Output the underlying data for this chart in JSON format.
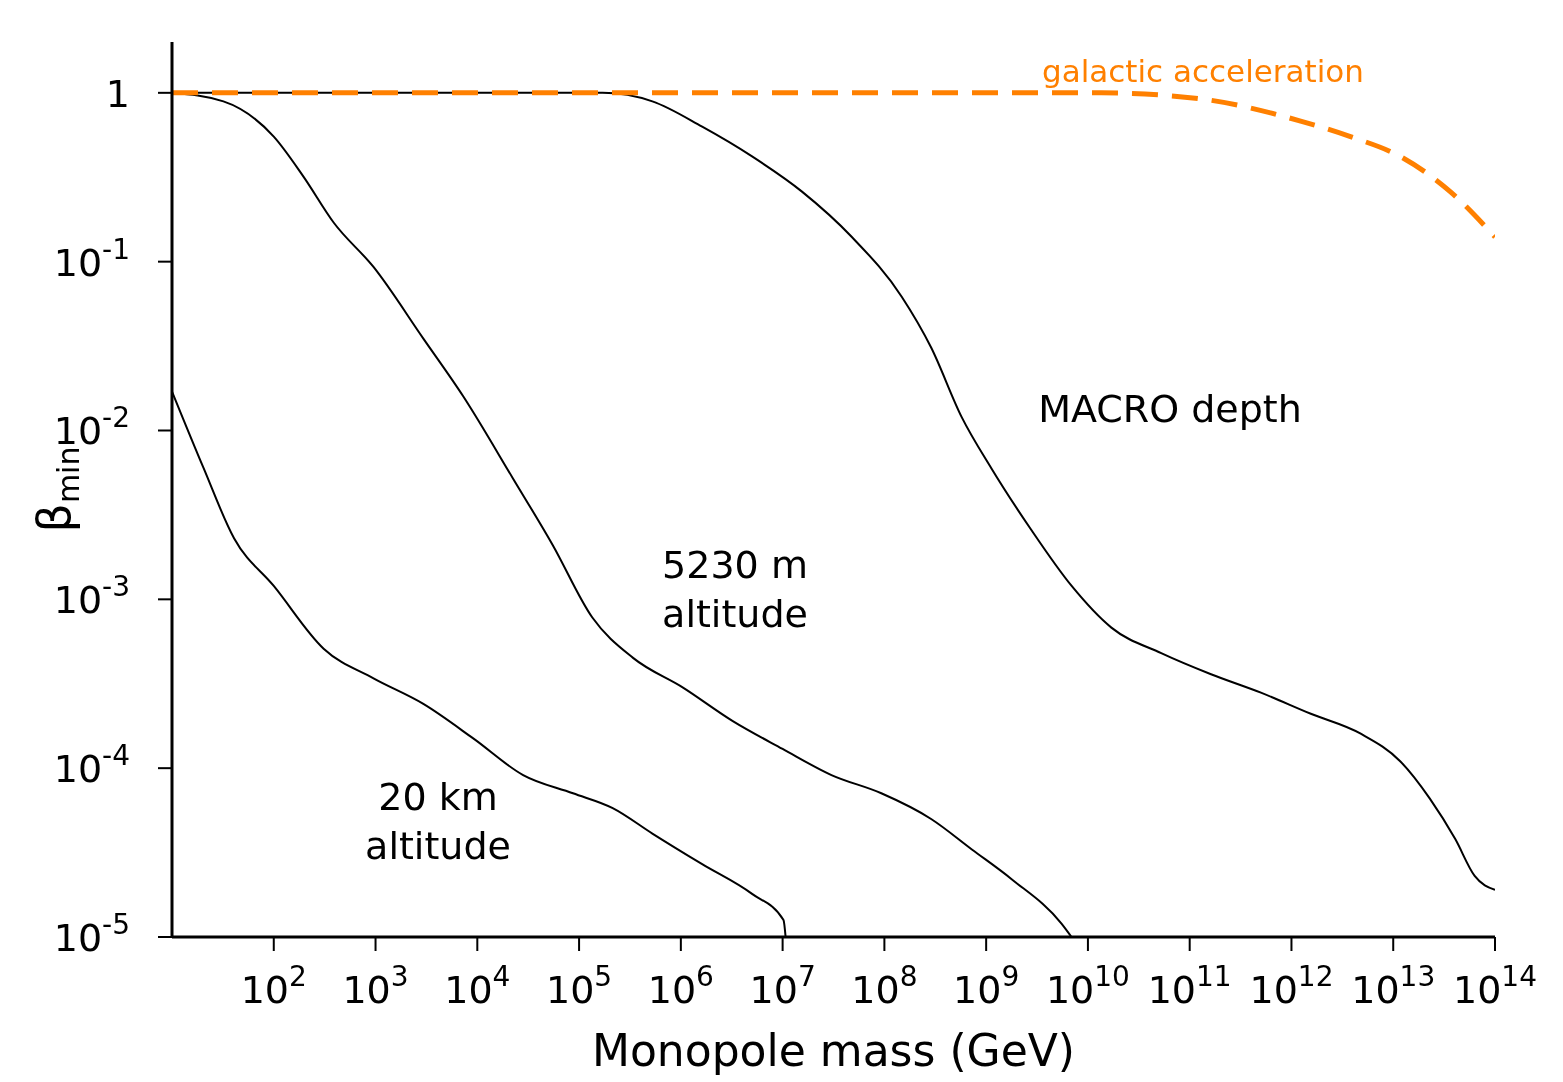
{
  "chart_data": {
    "type": "line",
    "xlabel": "Monopole mass (GeV)",
    "ylabel": "β$_{min}$",
    "log": "xy",
    "marker": "none",
    "line_style": "solid",
    "xlim": [
      10,
      100000000000000.0
    ],
    "ylim": [
      1e-05,
      2
    ],
    "xticks": [
      {
        "value": 100.0,
        "label": "10$^{2}$"
      },
      {
        "value": 1000.0,
        "label": "10$^{3}$"
      },
      {
        "value": 10000.0,
        "label": "10$^{4}$"
      },
      {
        "value": 100000.0,
        "label": "10$^{5}$"
      },
      {
        "value": 1000000.0,
        "label": "10$^{6}$"
      },
      {
        "value": 10000000.0,
        "label": "10$^{7}$"
      },
      {
        "value": 100000000.0,
        "label": "10$^{8}$"
      },
      {
        "value": 1000000000.0,
        "label": "10$^{9}$"
      },
      {
        "value": 10000000000.0,
        "label": "10$^{10}$"
      },
      {
        "value": 100000000000.0,
        "label": "10$^{11}$"
      },
      {
        "value": 1000000000000.0,
        "label": "10$^{12}$"
      },
      {
        "value": 10000000000000.0,
        "label": "10$^{13}$"
      },
      {
        "value": 100000000000000.0,
        "label": "10$^{14}$"
      }
    ],
    "yticks": [
      {
        "value": 1e-05,
        "label": "10$^{-5}$"
      },
      {
        "value": 0.0001,
        "label": "10$^{-4}$"
      },
      {
        "value": 0.001,
        "label": "10$^{-3}$"
      },
      {
        "value": 0.01,
        "label": "10$^{-2}$"
      },
      {
        "value": 0.1,
        "label": "10$^{-1}$"
      },
      1
    ],
    "series": [
      {
        "name": "MACRO depth",
        "color": "#000000",
        "x": [
          10,
          170000.0,
          525000.0,
          1620000.0,
          5010000.0,
          15500000.0,
          47900000.0,
          148000000.0,
          288000000.0,
          575000000.0,
          1120000000.0,
          2750000000.0,
          6920000000.0,
          17000000000.0,
          52500000000.0,
          162000000000.0,
          501000000000.0,
          1550000000000.0,
          4790000000000.0,
          11700000000000.0,
          22900000000000.0,
          40700000000000.0,
          63100000000000.0,
          100000000000000.0
        ],
        "values": [
          1,
          1,
          0.89,
          0.63,
          0.42,
          0.26,
          0.14,
          0.062,
          0.031,
          0.012,
          0.006,
          0.0026,
          0.0012,
          0.00068,
          0.00048,
          0.00036,
          0.00028,
          0.00021,
          0.00016,
          0.00011,
          6.6e-05,
          3.8e-05,
          2.3e-05,
          1.9e-05
        ]
      },
      {
        "name": "5230 m altitude",
        "color": "#000000",
        "x": [
          10,
          32,
          100,
          195,
          389,
          955,
          2950,
          7240,
          22400,
          55000,
          135000,
          339000,
          1050000.0,
          3240000.0,
          10000000.0,
          30200000.0,
          93300000.0,
          288000000.0,
          724000000.0,
          1780000000.0,
          5500000000.0,
          6900000000.0
        ],
        "values": [
          1,
          0.89,
          0.55,
          0.32,
          0.17,
          0.093,
          0.035,
          0.016,
          0.0052,
          0.0021,
          0.00078,
          0.00045,
          0.0003,
          0.00019,
          0.00013,
          9.1e-05,
          7.1e-05,
          5e-05,
          3.3e-05,
          2.2e-05,
          1.2e-05,
          1e-05
        ]
      },
      {
        "name": "20 km altitude",
        "color": "#000000",
        "x": [
          10,
          20.4,
          40.7,
          100,
          309,
          955,
          2950,
          9120,
          28200,
          87100,
          214000,
          525000,
          1620000.0,
          5010000.0,
          10200000.0,
          10700000.0
        ],
        "values": [
          0.017,
          0.006,
          0.0023,
          0.0012,
          0.00051,
          0.00034,
          0.00024,
          0.00015,
          9.1e-05,
          7.1e-05,
          5.8e-05,
          4.1e-05,
          2.7e-05,
          1.8e-05,
          1.26e-05,
          1e-05
        ]
      },
      {
        "name": "galactic acceleration",
        "color": "#ff8000",
        "line_style": "dashed",
        "x": [
          10,
          13500000000.0,
          129000000000.0,
          1230000000000.0,
          3800000000000.0,
          11700000000000.0,
          36300000000000.0,
          100000000000000.0
        ],
        "values": [
          1,
          1,
          0.92,
          0.68,
          0.55,
          0.42,
          0.26,
          0.14
        ]
      }
    ]
  }
}
